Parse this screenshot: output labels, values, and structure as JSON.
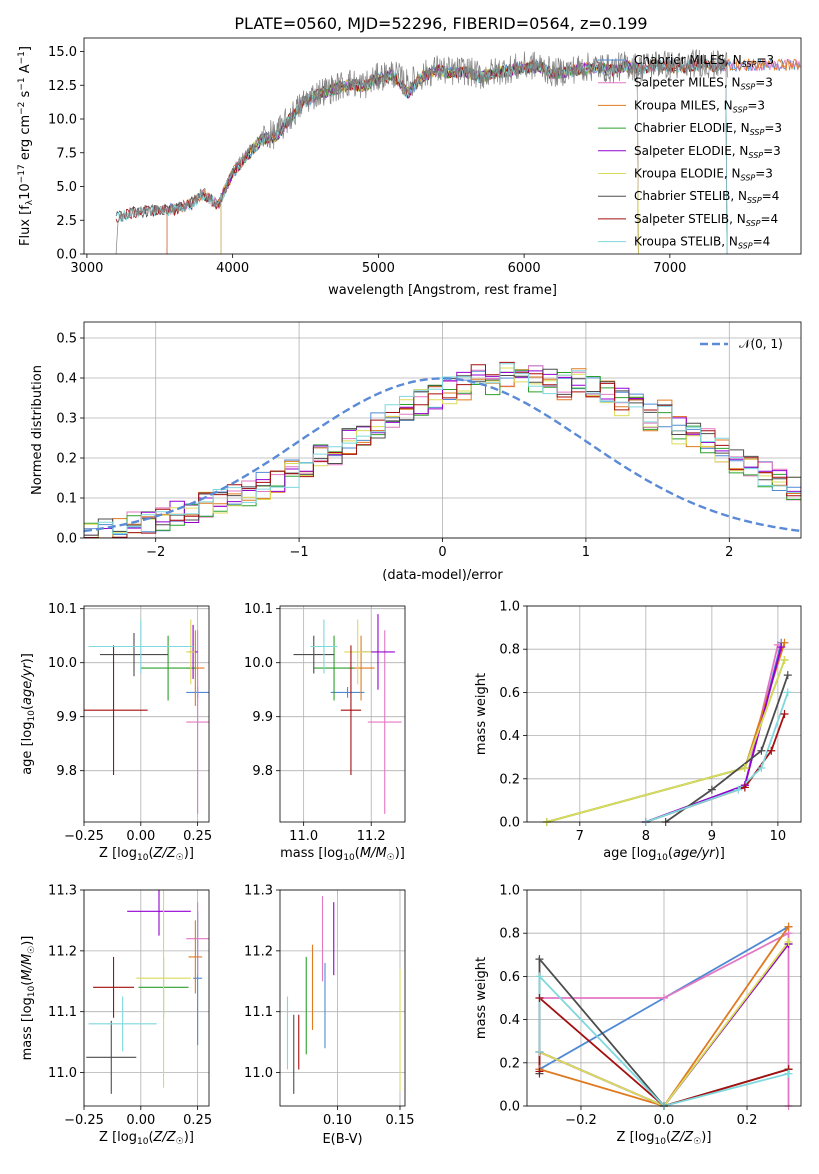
{
  "title": "PLATE=0560, MJD=52296, FIBERID=0564, z=0.199",
  "models": [
    {
      "name": "Chabrier MILES",
      "nssp": "3",
      "color": "#4f8ad4"
    },
    {
      "name": "Salpeter MILES",
      "nssp": "3",
      "color": "#e377c2"
    },
    {
      "name": "Kroupa MILES",
      "nssp": "3",
      "color": "#e07a1f"
    },
    {
      "name": "Chabrier ELODIE",
      "nssp": "3",
      "color": "#2ca02c"
    },
    {
      "name": "Salpeter ELODIE",
      "nssp": "3",
      "color": "#9400d3"
    },
    {
      "name": "Kroupa ELODIE",
      "nssp": "3",
      "color": "#dbdb5a"
    },
    {
      "name": "Chabrier STELIB",
      "nssp": "4",
      "color": "#4d4d4d"
    },
    {
      "name": "Salpeter STELIB",
      "nssp": "4",
      "color": "#a50f0f"
    },
    {
      "name": "Kroupa STELIB",
      "nssp": "4",
      "color": "#7fd8de"
    }
  ],
  "chart_data": [
    {
      "id": "spectrum",
      "type": "line",
      "xlabel": "wavelength [Angstrom, rest frame]",
      "ylabel": "Flux [f_λ 10^-17 erg cm^-2 s^-1 A^-1]",
      "xlim": [
        2980,
        7900
      ],
      "ylim": [
        0,
        16
      ],
      "xticks": [
        3000,
        4000,
        5000,
        6000,
        7000
      ],
      "yticks": [
        0.0,
        2.5,
        5.0,
        7.5,
        10.0,
        12.5,
        15.0
      ],
      "xtick_labels": [
        "3000",
        "4000",
        "5000",
        "6000",
        "7000"
      ],
      "ytick_labels": [
        "0.0",
        "2.5",
        "5.0",
        "7.5",
        "10.0",
        "12.5",
        "15.0"
      ],
      "data_color": "#808080",
      "data_x": [
        3200,
        3220,
        3300,
        3400,
        3500,
        3600,
        3700,
        3800,
        3900,
        3950,
        4000,
        4100,
        4200,
        4300,
        4400,
        4500,
        4600,
        4700,
        4800,
        4900,
        5000,
        5100,
        5200,
        5300,
        5400,
        5500,
        5600,
        5700,
        5800,
        5900,
        6000,
        6100,
        6200,
        6300,
        6400,
        6500,
        6600,
        6700,
        6800,
        6900,
        7000,
        7100,
        7200,
        7300,
        7400
      ],
      "data_y": [
        0.5,
        2.8,
        3.1,
        3.2,
        3.3,
        3.4,
        3.7,
        4.6,
        3.5,
        4.8,
        6.2,
        7.5,
        8.7,
        8.9,
        10.2,
        11.4,
        12.0,
        12.3,
        12.7,
        12.5,
        13.1,
        13.4,
        12.6,
        13.2,
        13.7,
        13.5,
        13.6,
        13.2,
        13.5,
        13.7,
        13.9,
        14.0,
        13.4,
        13.6,
        13.8,
        13.9,
        13.7,
        14.0,
        13.8,
        14.1,
        14.0,
        13.9,
        14.2,
        14.0,
        14.1
      ],
      "model_x": [
        3200,
        3300,
        3400,
        3500,
        3600,
        3700,
        3800,
        3900,
        4000,
        4100,
        4200,
        4300,
        4400,
        4500,
        4600,
        4700,
        4800,
        4900,
        5000,
        5100,
        5200,
        5300,
        5400,
        5500,
        5600,
        5700,
        5800,
        5900,
        6000,
        6100,
        6200,
        6300,
        6400,
        6500,
        6600,
        6700,
        6800,
        6900,
        7000,
        7100,
        7200,
        7300,
        7400
      ],
      "model_y": [
        2.7,
        3.0,
        3.2,
        3.2,
        3.3,
        3.6,
        4.4,
        3.6,
        6.0,
        7.3,
        8.5,
        8.7,
        10.1,
        11.3,
        11.9,
        12.2,
        12.6,
        12.4,
        13.0,
        13.3,
        11.9,
        13.1,
        13.6,
        13.4,
        13.5,
        13.1,
        13.4,
        13.6,
        13.8,
        13.9,
        13.3,
        13.5,
        13.7,
        13.8,
        13.6,
        13.9,
        13.7,
        14.0,
        13.9,
        13.8,
        14.1,
        13.9,
        14.0
      ],
      "model_ranges": [
        [
          3550,
          7900
        ],
        [
          3550,
          7900
        ],
        [
          3550,
          7900
        ],
        [
          3920,
          6790
        ],
        [
          3920,
          6790
        ],
        [
          3920,
          6790
        ],
        [
          3200,
          7400
        ],
        [
          3200,
          7400
        ],
        [
          3200,
          7400
        ]
      ]
    },
    {
      "id": "residuals",
      "type": "line",
      "xlabel": "(data-model)/error",
      "ylabel": "Normed distribution",
      "xlim": [
        -2.5,
        2.5
      ],
      "ylim": [
        0,
        0.54
      ],
      "xticks": [
        -2,
        -1,
        0,
        1,
        2
      ],
      "yticks": [
        0.0,
        0.1,
        0.2,
        0.3,
        0.4,
        0.5
      ],
      "xtick_labels": [
        "−2",
        "−1",
        "0",
        "1",
        "2"
      ],
      "ytick_labels": [
        "0.0",
        "0.1",
        "0.2",
        "0.3",
        "0.4",
        "0.5"
      ],
      "bin_start": -2.5,
      "bin_width": 0.1,
      "gauss_label": "𝒩(0, 1)",
      "gauss_color": "#5b8ad6",
      "hist_base": [
        0.02,
        0.025,
        0.03,
        0.035,
        0.04,
        0.05,
        0.06,
        0.07,
        0.08,
        0.09,
        0.1,
        0.11,
        0.13,
        0.14,
        0.16,
        0.17,
        0.2,
        0.21,
        0.24,
        0.25,
        0.28,
        0.3,
        0.32,
        0.34,
        0.35,
        0.37,
        0.38,
        0.4,
        0.39,
        0.41,
        0.42,
        0.4,
        0.39,
        0.38,
        0.4,
        0.37,
        0.36,
        0.34,
        0.35,
        0.3,
        0.31,
        0.27,
        0.26,
        0.24,
        0.22,
        0.19,
        0.18,
        0.16,
        0.15,
        0.13,
        0.12,
        0.11,
        0.09,
        0.08,
        0.07,
        0.06,
        0.05,
        0.045,
        0.04,
        0.035
      ]
    },
    {
      "id": "age-vs-Z",
      "type": "scatter",
      "xlabel": "Z [log10(Z/Z☉)]",
      "ylabel": "age  [log10(age/yr)]",
      "xlim": [
        -0.25,
        0.3
      ],
      "ylim": [
        9.705,
        10.105
      ],
      "xticks": [
        -0.25,
        0.0,
        0.25
      ],
      "yticks": [
        9.8,
        9.9,
        10.0,
        10.1
      ],
      "xtick_labels": [
        "−0.25",
        "0.00",
        "0.25"
      ],
      "ytick_labels": [
        "9.8",
        "9.9",
        "10.0",
        "10.1"
      ],
      "points": [
        {
          "x": 0.25,
          "xerr": 0.05,
          "y": 9.945,
          "yerr": 0.01
        },
        {
          "x": 0.25,
          "xerr": 0.05,
          "y": 9.89,
          "yerr": 0.17
        },
        {
          "x": 0.24,
          "xerr": 0.04,
          "y": 9.99,
          "yerr": 0.07
        },
        {
          "x": 0.12,
          "xerr": 0.12,
          "y": 9.99,
          "yerr": 0.06
        },
        {
          "x": 0.23,
          "xerr": 0.02,
          "y": 10.02,
          "yerr": 0.05
        },
        {
          "x": 0.22,
          "xerr": 0.02,
          "y": 10.02,
          "yerr": 0.06
        },
        {
          "x": -0.03,
          "xerr": 0.15,
          "y": 10.015,
          "yerr": 0.04
        },
        {
          "x": -0.12,
          "xerr": 0.15,
          "y": 9.912,
          "yerr": 0.12
        },
        {
          "x": 0.0,
          "xerr": 0.23,
          "y": 10.03,
          "yerr": 0.05
        }
      ]
    },
    {
      "id": "age-vs-mass",
      "type": "scatter",
      "xlabel": "mass [log10(M/M☉)]",
      "ylabel": "",
      "xlim": [
        10.93,
        11.3
      ],
      "ylim": [
        9.705,
        10.105
      ],
      "xticks": [
        11.0,
        11.2
      ],
      "yticks": [
        9.8,
        9.9,
        10.0,
        10.1
      ],
      "xtick_labels": [
        "11.0",
        "11.2"
      ],
      "ytick_labels": [
        "9.8",
        "9.9",
        "10.0",
        "10.1"
      ],
      "points": [
        {
          "x": 11.13,
          "xerr": 0.05,
          "y": 9.945,
          "yerr": 0.01
        },
        {
          "x": 11.24,
          "xerr": 0.05,
          "y": 9.89,
          "yerr": 0.17
        },
        {
          "x": 11.17,
          "xerr": 0.04,
          "y": 9.99,
          "yerr": 0.06
        },
        {
          "x": 11.09,
          "xerr": 0.06,
          "y": 9.99,
          "yerr": 0.06
        },
        {
          "x": 11.22,
          "xerr": 0.05,
          "y": 10.02,
          "yerr": 0.07
        },
        {
          "x": 11.16,
          "xerr": 0.04,
          "y": 10.02,
          "yerr": 0.06
        },
        {
          "x": 11.03,
          "xerr": 0.06,
          "y": 10.015,
          "yerr": 0.035
        },
        {
          "x": 11.14,
          "xerr": 0.03,
          "y": 9.912,
          "yerr": 0.12
        },
        {
          "x": 11.06,
          "xerr": 0.04,
          "y": 10.03,
          "yerr": 0.05
        }
      ]
    },
    {
      "id": "weight-vs-age",
      "type": "line",
      "xlabel": "age  [log10(age/yr)]",
      "ylabel": "mass weight",
      "xlim": [
        6.2,
        10.35
      ],
      "ylim": [
        0,
        1
      ],
      "xticks": [
        7,
        8,
        9,
        10
      ],
      "yticks": [
        0.0,
        0.2,
        0.4,
        0.6,
        0.8,
        1.0
      ],
      "xtick_labels": [
        "7",
        "8",
        "9",
        "10"
      ],
      "ytick_labels": [
        "0.0",
        "0.2",
        "0.4",
        "0.6",
        "0.8",
        "1.0"
      ],
      "series": [
        {
          "x": [
            8.0,
            9.5,
            10.05
          ],
          "y": [
            0.0,
            0.17,
            0.83
          ]
        },
        {
          "x": [
            8.0,
            9.5,
            10.0
          ],
          "y": [
            0.0,
            0.17,
            0.82
          ]
        },
        {
          "x": [
            6.5,
            9.5,
            10.1
          ],
          "y": [
            0.0,
            0.25,
            0.83
          ]
        },
        {
          "x": [
            6.5,
            9.5,
            10.1
          ],
          "y": [
            0.0,
            0.25,
            0.75
          ]
        },
        {
          "x": [
            8.0,
            9.5,
            10.05
          ],
          "y": [
            0.0,
            0.17,
            0.81
          ]
        },
        {
          "x": [
            6.5,
            9.5,
            10.1
          ],
          "y": [
            0.0,
            0.25,
            0.75
          ]
        },
        {
          "x": [
            8.3,
            9.0,
            9.75,
            10.15
          ],
          "y": [
            0.0,
            0.15,
            0.33,
            0.68
          ]
        },
        {
          "x": [
            8.0,
            9.5,
            9.9,
            10.1
          ],
          "y": [
            0.0,
            0.16,
            0.33,
            0.5
          ]
        },
        {
          "x": [
            8.0,
            9.4,
            9.75,
            10.15
          ],
          "y": [
            0.0,
            0.15,
            0.25,
            0.6
          ]
        }
      ]
    },
    {
      "id": "mass-vs-Z",
      "type": "scatter",
      "xlabel": "Z [log10(Z/Z☉)]",
      "ylabel": "mass [log10(M/M☉)]",
      "xlim": [
        -0.25,
        0.3
      ],
      "ylim": [
        10.945,
        11.3
      ],
      "xticks": [
        -0.25,
        0.0,
        0.25
      ],
      "yticks": [
        11.0,
        11.1,
        11.2,
        11.3
      ],
      "xtick_labels": [
        "−0.25",
        "0.00",
        "0.25"
      ],
      "ytick_labels": [
        "11.0",
        "11.1",
        "11.2",
        "11.3"
      ],
      "points": [
        {
          "x": 0.25,
          "xerr": 0.02,
          "y": 11.155,
          "yerr": 0.11
        },
        {
          "x": 0.25,
          "xerr": 0.05,
          "y": 11.22,
          "yerr": 0.06
        },
        {
          "x": 0.24,
          "xerr": 0.03,
          "y": 11.19,
          "yerr": 0.06
        },
        {
          "x": 0.1,
          "xerr": 0.11,
          "y": 11.14,
          "yerr": 0.05
        },
        {
          "x": 0.08,
          "xerr": 0.14,
          "y": 11.265,
          "yerr": 0.04
        },
        {
          "x": 0.1,
          "xerr": 0.12,
          "y": 11.155,
          "yerr": 0.18
        },
        {
          "x": -0.13,
          "xerr": 0.11,
          "y": 11.025,
          "yerr": 0.06
        },
        {
          "x": -0.12,
          "xerr": 0.09,
          "y": 11.14,
          "yerr": 0.05
        },
        {
          "x": -0.08,
          "xerr": 0.15,
          "y": 11.08,
          "yerr": 0.045
        }
      ]
    },
    {
      "id": "mass-vs-EBV",
      "type": "scatter",
      "xlabel": "E(B-V)",
      "ylabel": "",
      "xlim": [
        0.054,
        0.154
      ],
      "ylim": [
        10.945,
        11.3
      ],
      "xticks": [
        0.05,
        0.1,
        0.15
      ],
      "yticks": [
        11.0,
        11.1,
        11.2,
        11.3
      ],
      "xtick_labels": [
        "0.05",
        "0.10",
        "0.15"
      ],
      "ytick_labels": [
        "11.0",
        "11.1",
        "11.2",
        "11.3"
      ],
      "points": [
        {
          "x": 0.09,
          "y": 11.11,
          "yerr": 0.07
        },
        {
          "x": 0.088,
          "y": 11.22,
          "yerr": 0.07
        },
        {
          "x": 0.08,
          "y": 11.14,
          "yerr": 0.07
        },
        {
          "x": 0.075,
          "y": 11.11,
          "yerr": 0.08
        },
        {
          "x": 0.097,
          "y": 11.22,
          "yerr": 0.06
        },
        {
          "x": 0.15,
          "y": 11.07,
          "yerr": 0.1
        },
        {
          "x": 0.065,
          "y": 11.03,
          "yerr": 0.065
        },
        {
          "x": 0.069,
          "y": 11.05,
          "yerr": 0.045
        },
        {
          "x": 0.06,
          "y": 11.065,
          "yerr": 0.06
        }
      ]
    },
    {
      "id": "weight-vs-Z",
      "type": "line",
      "xlabel": "Z [log10(Z/Z☉)]",
      "ylabel": "mass weight",
      "xlim": [
        -0.33,
        0.33
      ],
      "ylim": [
        0,
        1
      ],
      "xticks": [
        -0.2,
        0.0,
        0.2
      ],
      "yticks": [
        0.0,
        0.2,
        0.4,
        0.6,
        0.8,
        1.0
      ],
      "xtick_labels": [
        "−0.2",
        "0.0",
        "0.2"
      ],
      "ytick_labels": [
        "0.0",
        "0.2",
        "0.4",
        "0.6",
        "0.8",
        "1.0"
      ],
      "series": [
        {
          "x": [
            -0.3,
            0.3
          ],
          "y": [
            0.17,
            0.83
          ]
        },
        {
          "x": [
            -0.3,
            0.0,
            0.3,
            0.3
          ],
          "y": [
            0.5,
            0.5,
            0.8,
            0.0
          ]
        },
        {
          "x": [
            -0.3,
            0.0,
            0.3
          ],
          "y": [
            0.17,
            0.0,
            0.83
          ]
        },
        {
          "x": [
            -0.3,
            0.0,
            0.3
          ],
          "y": [
            0.25,
            0.0,
            0.75
          ]
        },
        {
          "x": [
            -0.3,
            0.0,
            0.3
          ],
          "y": [
            0.25,
            0.0,
            0.75
          ]
        },
        {
          "x": [
            -0.3,
            0.0,
            0.3
          ],
          "y": [
            0.25,
            0.0,
            0.76
          ]
        },
        {
          "x": [
            -0.3,
            -0.3,
            0.0,
            0.3
          ],
          "y": [
            0.15,
            0.68,
            0.0,
            0.17
          ]
        },
        {
          "x": [
            -0.3,
            -0.3,
            0.0,
            0.3
          ],
          "y": [
            0.16,
            0.5,
            0.0,
            0.17
          ]
        },
        {
          "x": [
            -0.3,
            -0.3,
            0.0,
            0.3
          ],
          "y": [
            0.25,
            0.6,
            0.0,
            0.15
          ]
        }
      ]
    }
  ]
}
